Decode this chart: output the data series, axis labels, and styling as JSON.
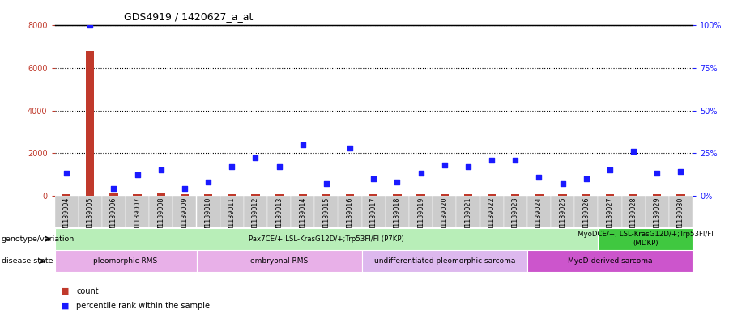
{
  "title": "GDS4919 / 1420627_a_at",
  "samples": [
    "GSM1139004",
    "GSM1139005",
    "GSM1139006",
    "GSM1139007",
    "GSM1139008",
    "GSM1139009",
    "GSM1139010",
    "GSM1139011",
    "GSM1139012",
    "GSM1139013",
    "GSM1139014",
    "GSM1139015",
    "GSM1139016",
    "GSM1139017",
    "GSM1139018",
    "GSM1139019",
    "GSM1139020",
    "GSM1139021",
    "GSM1139022",
    "GSM1139023",
    "GSM1139024",
    "GSM1139025",
    "GSM1139026",
    "GSM1139027",
    "GSM1139028",
    "GSM1139029",
    "GSM1139030"
  ],
  "counts": [
    80,
    6800,
    120,
    60,
    120,
    60,
    60,
    60,
    60,
    60,
    60,
    60,
    60,
    60,
    60,
    60,
    60,
    60,
    60,
    60,
    60,
    60,
    60,
    60,
    60,
    60,
    60
  ],
  "percentiles": [
    13,
    100,
    4,
    12,
    15,
    4,
    8,
    17,
    22,
    17,
    30,
    7,
    28,
    10,
    8,
    13,
    18,
    17,
    21,
    21,
    11,
    7,
    10,
    15,
    26,
    13,
    14
  ],
  "ylim_left": [
    0,
    8000
  ],
  "ylim_right": [
    0,
    100
  ],
  "yticks_left": [
    0,
    2000,
    4000,
    6000,
    8000
  ],
  "yticks_right": [
    0,
    25,
    50,
    75,
    100
  ],
  "bar_color": "#c0392b",
  "scatter_color": "#1a1aff",
  "background_color": "#ffffff",
  "genotype_bands": [
    {
      "label": "Pax7CE/+;LSL-KrasG12D/+;Trp53Fl/Fl (P7KP)",
      "start": 0,
      "end": 23,
      "color": "#b8eeb8"
    },
    {
      "label": "MyoDCE/+; LSL-KrasG12D/+;Trp53Fl/Fl\n(MDKP)",
      "start": 23,
      "end": 27,
      "color": "#40c840"
    }
  ],
  "disease_bands": [
    {
      "label": "pleomorphic RMS",
      "start": 0,
      "end": 6,
      "color": "#e8b0e8"
    },
    {
      "label": "embryonal RMS",
      "start": 6,
      "end": 13,
      "color": "#e8b0e8"
    },
    {
      "label": "undifferentiated pleomorphic sarcoma",
      "start": 13,
      "end": 20,
      "color": "#ddb8ee"
    },
    {
      "label": "MyoD-derived sarcoma",
      "start": 20,
      "end": 27,
      "color": "#cc55cc"
    }
  ],
  "grid_color": "#000000",
  "left_axis_color": "#c0392b",
  "right_axis_color": "#1a1aff",
  "tick_label_fontsize": 7,
  "label_fontsize": 7,
  "band_fontsize": 7
}
